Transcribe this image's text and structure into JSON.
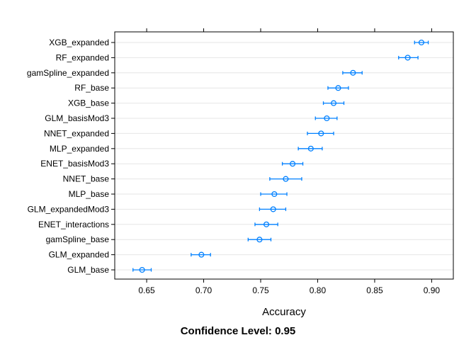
{
  "chart_data": {
    "type": "dotplot",
    "orientation": "horizontal",
    "xlabel": "Accuracy",
    "caption": "Confidence Level: 0.95",
    "xlim": [
      0.622,
      0.919
    ],
    "x_ticks": [
      0.65,
      0.7,
      0.75,
      0.8,
      0.85,
      0.9
    ],
    "x_tick_labels": [
      "0.65",
      "0.70",
      "0.75",
      "0.80",
      "0.85",
      "0.90"
    ],
    "grid": "horizontal",
    "point_color": "#0080ff",
    "categories": [
      "XGB_expanded",
      "RF_expanded",
      "gamSpline_expanded",
      "RF_base",
      "XGB_base",
      "GLM_basisMod3",
      "NNET_expanded",
      "MLP_expanded",
      "ENET_basisMod3",
      "NNET_base",
      "MLP_base",
      "GLM_expandedMod3",
      "ENET_interactions",
      "gamSpline_base",
      "GLM_expanded",
      "GLM_base"
    ],
    "estimates": [
      0.891,
      0.879,
      0.831,
      0.818,
      0.814,
      0.808,
      0.803,
      0.794,
      0.778,
      0.772,
      0.762,
      0.761,
      0.755,
      0.749,
      0.698,
      0.646
    ],
    "lower": [
      0.885,
      0.871,
      0.822,
      0.809,
      0.805,
      0.798,
      0.791,
      0.783,
      0.769,
      0.758,
      0.75,
      0.749,
      0.745,
      0.739,
      0.689,
      0.638
    ],
    "upper": [
      0.897,
      0.888,
      0.839,
      0.827,
      0.823,
      0.817,
      0.814,
      0.804,
      0.787,
      0.786,
      0.773,
      0.772,
      0.765,
      0.759,
      0.706,
      0.654
    ]
  }
}
